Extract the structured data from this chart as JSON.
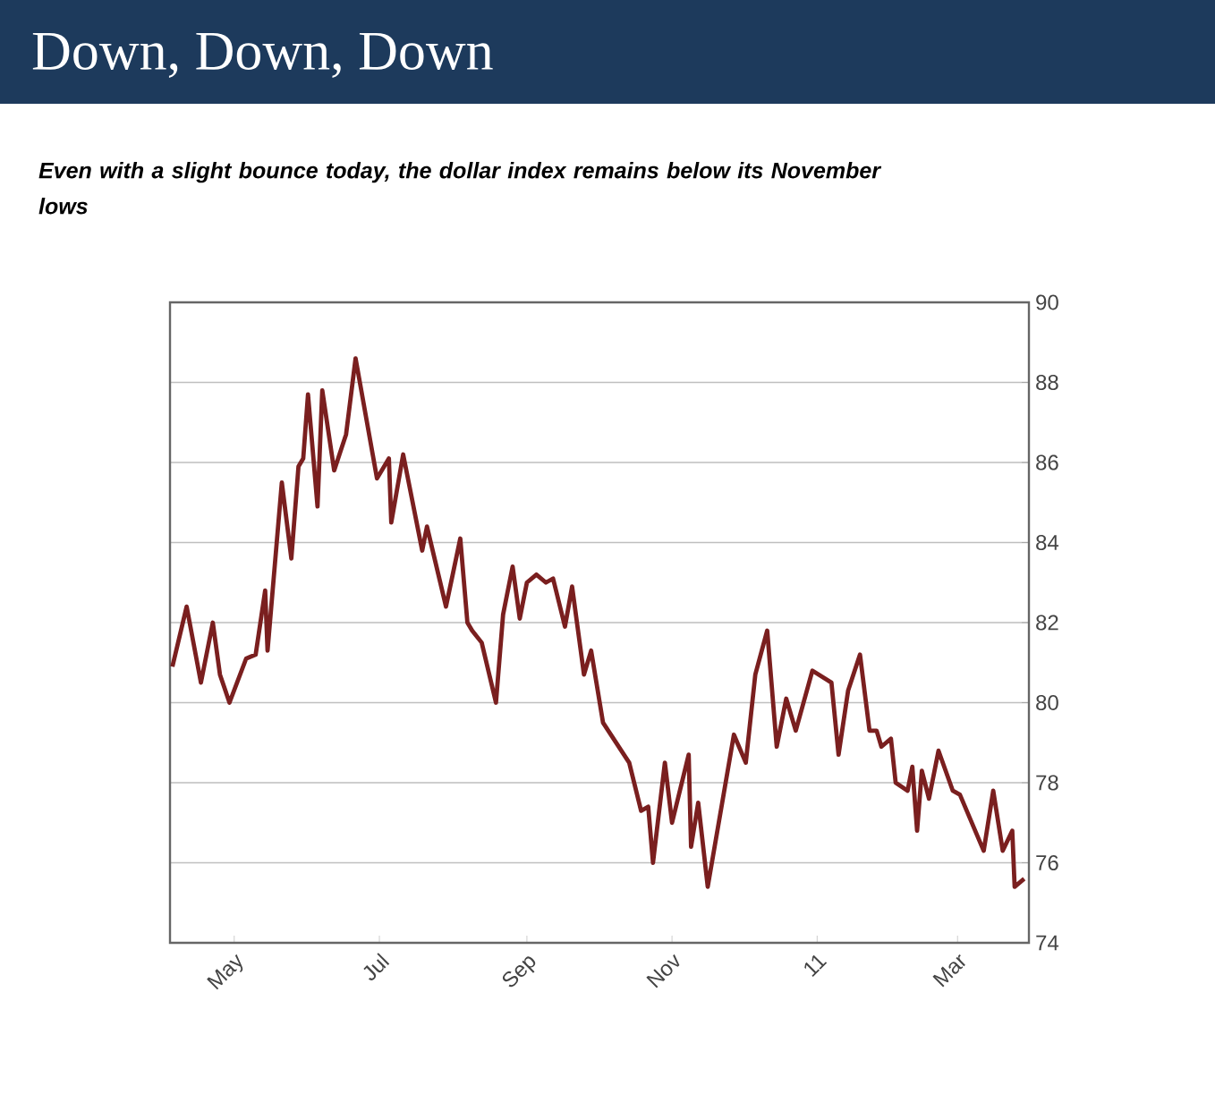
{
  "chart_data": {
    "type": "line",
    "title": "Down, Down, Down",
    "subtitle": "Even with a slight bounce today, the dollar index remains below its November lows",
    "x": [
      "2010-04-05",
      "2010-04-11",
      "2010-04-17",
      "2010-04-22",
      "2010-04-25",
      "2010-04-29",
      "2010-05-06",
      "2010-05-10",
      "2010-05-14",
      "2010-05-15",
      "2010-05-21",
      "2010-05-25",
      "2010-05-28",
      "2010-05-30",
      "2010-06-01",
      "2010-06-05",
      "2010-06-07",
      "2010-06-12",
      "2010-06-17",
      "2010-06-21",
      "2010-06-30",
      "2010-07-05",
      "2010-07-06",
      "2010-07-11",
      "2010-07-19",
      "2010-07-21",
      "2010-07-29",
      "2010-08-04",
      "2010-08-07",
      "2010-08-09",
      "2010-08-13",
      "2010-08-19",
      "2010-08-22",
      "2010-08-26",
      "2010-08-29",
      "2010-09-01",
      "2010-09-05",
      "2010-09-09",
      "2010-09-12",
      "2010-09-17",
      "2010-09-20",
      "2010-09-25",
      "2010-09-28",
      "2010-10-03",
      "2010-10-14",
      "2010-10-19",
      "2010-10-22",
      "2010-10-24",
      "2010-10-29",
      "2010-11-01",
      "2010-11-08",
      "2010-11-09",
      "2010-11-12",
      "2010-11-16",
      "2010-11-27",
      "2010-12-02",
      "2010-12-06",
      "2010-12-11",
      "2010-12-15",
      "2010-12-19",
      "2010-12-23",
      "2010-12-30",
      "2011-01-07",
      "2011-01-10",
      "2011-01-14",
      "2011-01-19",
      "2011-01-23",
      "2011-01-26",
      "2011-01-28",
      "2011-02-01",
      "2011-02-03",
      "2011-02-08",
      "2011-02-10",
      "2011-02-12",
      "2011-02-14",
      "2011-02-17",
      "2011-02-21",
      "2011-02-27",
      "2011-03-02",
      "2011-03-12",
      "2011-03-16",
      "2011-03-20",
      "2011-03-24",
      "2011-03-25",
      "2011-03-29"
    ],
    "series": [
      {
        "color": "#7a1f1f",
        "values": [
          80.9,
          82.4,
          80.5,
          82.0,
          80.7,
          80.0,
          81.1,
          81.2,
          82.8,
          81.3,
          85.5,
          83.6,
          85.9,
          86.1,
          87.7,
          84.9,
          87.8,
          85.8,
          86.7,
          88.6,
          85.6,
          86.1,
          84.5,
          86.2,
          83.8,
          84.4,
          82.4,
          84.1,
          82.0,
          81.8,
          81.5,
          80.0,
          82.2,
          83.4,
          82.1,
          83.0,
          83.2,
          83.0,
          83.1,
          81.9,
          82.9,
          80.7,
          81.3,
          79.5,
          78.5,
          77.3,
          77.4,
          76.0,
          78.5,
          77.0,
          78.7,
          76.4,
          77.5,
          75.4,
          79.2,
          78.5,
          80.7,
          81.8,
          78.9,
          80.1,
          79.3,
          80.8,
          80.5,
          78.7,
          80.3,
          81.2,
          79.3,
          79.3,
          78.9,
          79.1,
          78.0,
          77.8,
          78.4,
          76.8,
          78.3,
          77.6,
          78.8,
          77.8,
          77.7,
          76.3,
          77.8,
          76.3,
          76.8,
          75.4,
          75.6
        ]
      }
    ],
    "xlim": [
      "2010-04-04",
      "2011-03-31"
    ],
    "xticks": [
      {
        "value": "2010-05-01",
        "label": "May"
      },
      {
        "value": "2010-07-01",
        "label": "Jul"
      },
      {
        "value": "2010-09-01",
        "label": "Sep"
      },
      {
        "value": "2010-11-01",
        "label": "Nov"
      },
      {
        "value": "2011-01-01",
        "label": "11"
      },
      {
        "value": "2011-03-01",
        "label": "Mar"
      }
    ],
    "ylim": [
      74,
      90
    ],
    "yticks": [
      74,
      76,
      78,
      80,
      82,
      84,
      86,
      88,
      90
    ],
    "grid": "y",
    "line_style": "solid",
    "marker": "none"
  }
}
